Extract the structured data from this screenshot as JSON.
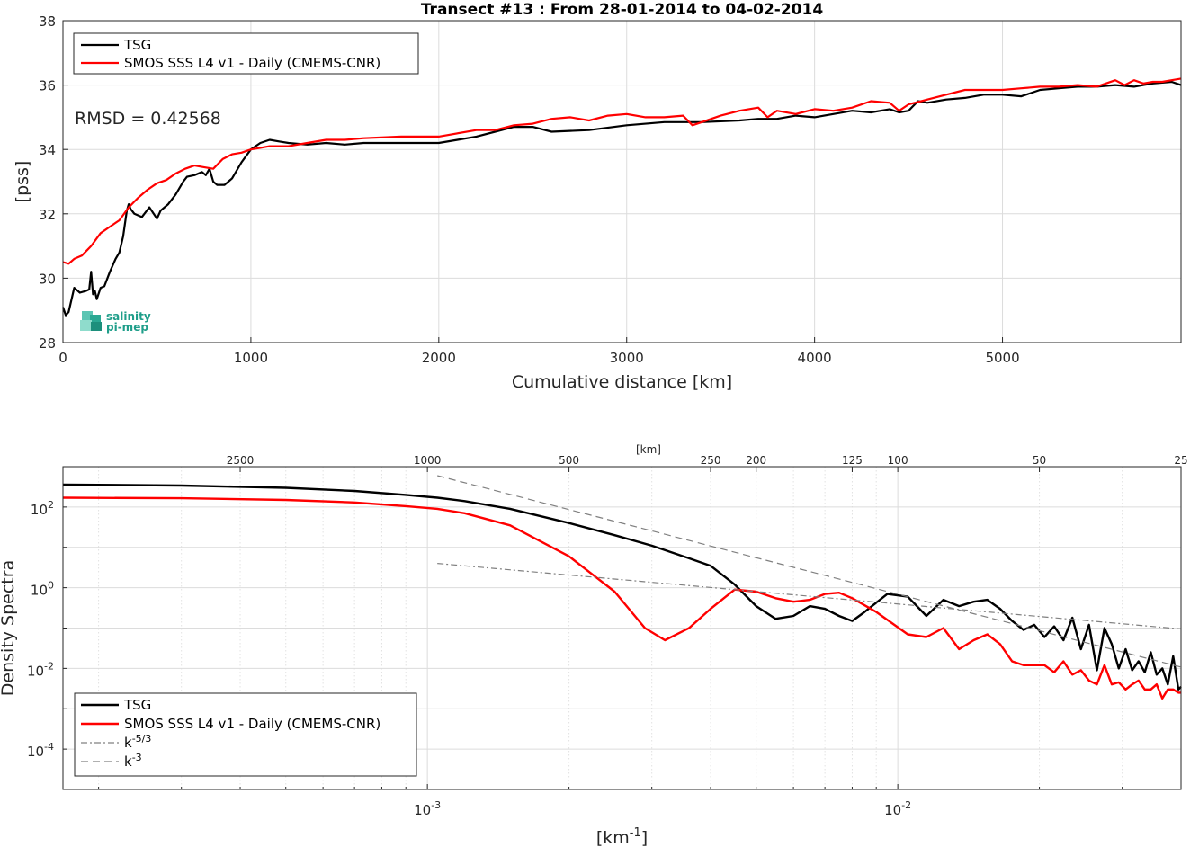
{
  "logo": {
    "line1": "salinity",
    "line2": "pi-mep"
  },
  "chart_data": [
    {
      "type": "line",
      "title": "Transect #13 : From 28-01-2014 to 04-02-2014",
      "xlabel": "Cumulative distance [km]",
      "ylabel": "[pss]",
      "xlim": [
        0,
        5950
      ],
      "ylim": [
        28,
        38
      ],
      "xticks": [
        "0",
        "1000",
        "2000",
        "3000",
        "4000",
        "5000"
      ],
      "yticks": [
        "28",
        "30",
        "32",
        "34",
        "36",
        "38"
      ],
      "grid": true,
      "legend_position": "top-left",
      "annotation": "RMSD = 0.42568",
      "series": [
        {
          "name": "TSG",
          "color": "#000000",
          "x": [
            0,
            15,
            30,
            60,
            90,
            120,
            140,
            150,
            160,
            170,
            180,
            200,
            220,
            250,
            280,
            300,
            320,
            340,
            350,
            360,
            380,
            420,
            460,
            500,
            520,
            560,
            600,
            640,
            660,
            700,
            740,
            760,
            780,
            800,
            820,
            860,
            900,
            950,
            1000,
            1050,
            1100,
            1150,
            1200,
            1300,
            1400,
            1500,
            1600,
            1800,
            2000,
            2100,
            2200,
            2300,
            2400,
            2500,
            2600,
            2800,
            3000,
            3200,
            3400,
            3600,
            3700,
            3800,
            3900,
            4000,
            4100,
            4200,
            4300,
            4400,
            4450,
            4500,
            4550,
            4600,
            4700,
            4800,
            4900,
            5000,
            5100,
            5200,
            5300,
            5400,
            5500,
            5600,
            5700,
            5800,
            5900,
            5950
          ],
          "y": [
            29.1,
            28.85,
            28.95,
            29.7,
            29.55,
            29.6,
            29.65,
            30.2,
            29.5,
            29.6,
            29.35,
            29.7,
            29.75,
            30.2,
            30.6,
            30.8,
            31.3,
            32.1,
            32.3,
            32.15,
            32.0,
            31.9,
            32.2,
            31.85,
            32.1,
            32.3,
            32.6,
            33.0,
            33.15,
            33.2,
            33.3,
            33.2,
            33.4,
            33.0,
            32.9,
            32.9,
            33.1,
            33.6,
            34.0,
            34.2,
            34.3,
            34.25,
            34.2,
            34.15,
            34.2,
            34.15,
            34.2,
            34.2,
            34.2,
            34.3,
            34.4,
            34.55,
            34.7,
            34.7,
            34.55,
            34.6,
            34.75,
            34.85,
            34.85,
            34.9,
            34.95,
            34.95,
            35.05,
            35.0,
            35.1,
            35.2,
            35.15,
            35.25,
            35.15,
            35.2,
            35.5,
            35.45,
            35.55,
            35.6,
            35.7,
            35.7,
            35.65,
            35.85,
            35.9,
            35.95,
            35.95,
            36.0,
            35.95,
            36.05,
            36.1,
            36.0
          ]
        },
        {
          "name": "SMOS SSS L4 v1 - Daily (CMEMS-CNR)",
          "color": "#ff0000",
          "x": [
            0,
            30,
            60,
            100,
            150,
            200,
            250,
            300,
            350,
            400,
            450,
            500,
            550,
            600,
            650,
            700,
            750,
            800,
            850,
            900,
            950,
            1000,
            1050,
            1100,
            1200,
            1300,
            1400,
            1500,
            1600,
            1800,
            2000,
            2200,
            2300,
            2400,
            2500,
            2600,
            2700,
            2800,
            2900,
            3000,
            3100,
            3200,
            3300,
            3350,
            3400,
            3500,
            3600,
            3700,
            3750,
            3800,
            3900,
            4000,
            4100,
            4200,
            4300,
            4400,
            4450,
            4500,
            4600,
            4700,
            4800,
            4900,
            5000,
            5100,
            5200,
            5300,
            5400,
            5500,
            5600,
            5650,
            5700,
            5750,
            5800,
            5850,
            5900,
            5950
          ],
          "y": [
            30.5,
            30.45,
            30.6,
            30.7,
            31.0,
            31.4,
            31.6,
            31.8,
            32.2,
            32.5,
            32.75,
            32.95,
            33.05,
            33.25,
            33.4,
            33.5,
            33.45,
            33.4,
            33.7,
            33.85,
            33.9,
            34.0,
            34.05,
            34.1,
            34.1,
            34.2,
            34.3,
            34.3,
            34.35,
            34.4,
            34.4,
            34.6,
            34.6,
            34.75,
            34.8,
            34.95,
            35.0,
            34.9,
            35.05,
            35.1,
            35.0,
            35.0,
            35.05,
            34.75,
            34.85,
            35.05,
            35.2,
            35.3,
            35.0,
            35.2,
            35.1,
            35.25,
            35.2,
            35.3,
            35.5,
            35.45,
            35.2,
            35.4,
            35.55,
            35.7,
            35.85,
            35.85,
            35.85,
            35.9,
            35.95,
            35.95,
            36.0,
            35.95,
            36.15,
            36.0,
            36.15,
            36.05,
            36.1,
            36.1,
            36.15,
            36.2
          ]
        }
      ]
    },
    {
      "type": "line",
      "title": "",
      "xlabel": "[km^-1]",
      "ylabel": "Density Spectra",
      "xscale": "log",
      "yscale": "log",
      "xlim": [
        0.000168,
        0.04
      ],
      "ylim": [
        1e-05,
        1000
      ],
      "xticks": [
        0.001,
        0.01
      ],
      "xtick_labels": [
        {
          "base": "10",
          "exp": "-3"
        },
        {
          "base": "10",
          "exp": "-2"
        }
      ],
      "yticks": [
        0.0001,
        0.01,
        1,
        100
      ],
      "ytick_labels": [
        {
          "base": "10",
          "exp": "-4"
        },
        {
          "base": "10",
          "exp": "-2"
        },
        {
          "base": "10",
          "exp": "0"
        },
        {
          "base": "10",
          "exp": "2"
        }
      ],
      "top_axis_label": "[km]",
      "top_ticks_km": [
        "2500",
        "1000",
        "500",
        "250",
        "200",
        "125",
        "100",
        "50",
        "25"
      ],
      "grid": true,
      "legend_position": "bottom-left",
      "series": [
        {
          "name": "TSG",
          "color": "#000000",
          "x": [
            0.000168,
            0.0003,
            0.0005,
            0.0007,
            0.0009,
            0.00105,
            0.0012,
            0.0015,
            0.002,
            0.0025,
            0.003,
            0.0035,
            0.004,
            0.0045,
            0.005,
            0.0055,
            0.006,
            0.0065,
            0.007,
            0.0075,
            0.008,
            0.0085,
            0.0095,
            0.0105,
            0.0115,
            0.0125,
            0.0135,
            0.0145,
            0.0155,
            0.0165,
            0.0175,
            0.0185,
            0.0195,
            0.0205,
            0.0215,
            0.0225,
            0.0235,
            0.0245,
            0.0255,
            0.0265,
            0.0275,
            0.0285,
            0.0295,
            0.0305,
            0.0315,
            0.0325,
            0.0335,
            0.0345,
            0.0355,
            0.0365,
            0.0375,
            0.0385,
            0.0395,
            0.04
          ],
          "y": [
            360,
            340,
            300,
            250,
            200,
            170,
            140,
            90,
            40,
            20,
            11,
            6,
            3.5,
            1.2,
            0.35,
            0.17,
            0.2,
            0.35,
            0.3,
            0.2,
            0.15,
            0.25,
            0.7,
            0.6,
            0.2,
            0.5,
            0.35,
            0.45,
            0.5,
            0.3,
            0.15,
            0.09,
            0.12,
            0.06,
            0.11,
            0.05,
            0.18,
            0.03,
            0.12,
            0.009,
            0.1,
            0.04,
            0.01,
            0.03,
            0.009,
            0.015,
            0.008,
            0.025,
            0.007,
            0.01,
            0.004,
            0.02,
            0.003,
            0.0035
          ]
        },
        {
          "name": "SMOS SSS L4 v1 - Daily (CMEMS-CNR)",
          "color": "#ff0000",
          "x": [
            0.000168,
            0.0003,
            0.0005,
            0.0007,
            0.0009,
            0.00105,
            0.0012,
            0.0015,
            0.002,
            0.0025,
            0.0029,
            0.0032,
            0.0036,
            0.004,
            0.0045,
            0.005,
            0.0055,
            0.006,
            0.0065,
            0.007,
            0.0075,
            0.008,
            0.009,
            0.0105,
            0.0115,
            0.0125,
            0.0135,
            0.0145,
            0.0155,
            0.0165,
            0.0175,
            0.0185,
            0.0195,
            0.0205,
            0.0215,
            0.0225,
            0.0235,
            0.0245,
            0.0255,
            0.0265,
            0.0275,
            0.0285,
            0.0295,
            0.0305,
            0.0315,
            0.0325,
            0.0335,
            0.0345,
            0.0355,
            0.0365,
            0.0375,
            0.0385,
            0.0395,
            0.04
          ],
          "y": [
            170,
            165,
            150,
            130,
            105,
            90,
            70,
            35,
            6,
            0.8,
            0.1,
            0.05,
            0.1,
            0.3,
            0.9,
            0.8,
            0.55,
            0.45,
            0.5,
            0.7,
            0.75,
            0.55,
            0.25,
            0.07,
            0.06,
            0.1,
            0.03,
            0.05,
            0.07,
            0.04,
            0.015,
            0.012,
            0.012,
            0.012,
            0.008,
            0.015,
            0.007,
            0.009,
            0.005,
            0.004,
            0.012,
            0.004,
            0.0045,
            0.003,
            0.004,
            0.005,
            0.003,
            0.003,
            0.004,
            0.0018,
            0.003,
            0.003,
            0.0025,
            0.0025
          ]
        },
        {
          "name": "k^-5/3",
          "color": "#808080",
          "style": "dashdot",
          "x": [
            0.00105,
            0.04
          ],
          "y": [
            4.0,
            0.095
          ]
        },
        {
          "name": "k^-3",
          "color": "#808080",
          "style": "dashed",
          "x": [
            0.00105,
            0.04
          ],
          "y": [
            600,
            0.0108
          ]
        }
      ]
    }
  ]
}
